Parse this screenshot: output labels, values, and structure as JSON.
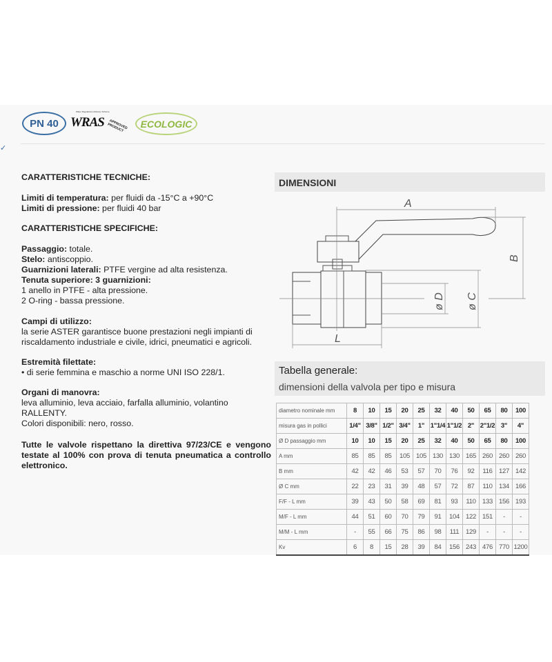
{
  "badges": {
    "pn": "PN 40",
    "wras": "WRAS",
    "wras_sub": "APPROVED PRODUCT",
    "wras_tiny": "Water Regulations Advisory Scheme",
    "ecologic": "ECOLOGIC"
  },
  "left": {
    "h1": "CARATTERISTICHE TECNICHE:",
    "temp_label": "Limiti di temperatura:",
    "temp_value": " per fluidi   da -15°C a +90°C",
    "press_label": "Limiti di pressione:",
    "press_value": " per fluidi 40 bar",
    "h2": "CARATTERISTICHE SPECIFICHE:",
    "pass_label": "Passaggio:",
    "pass_value": " totale.",
    "stelo_label": "Stelo:",
    "stelo_value": " antiscoppio.",
    "guarn_label": "Guarnizioni laterali:",
    "guarn_value": " PTFE vergine ad alta resistenza.",
    "tenuta_label": "Tenuta superiore: 3 guarnizioni:",
    "tenuta_1": "1 anello in PTFE - alta pressione.",
    "tenuta_2": "2 O-ring - bassa pressione.",
    "campi_label": "Campi di utilizzo:",
    "campi_1": "la serie ASTER garantisce buone prestazioni negli impianti di",
    "campi_2": "riscaldamento industriale e civile, idrici, pneumatici e agricoli.",
    "estr_label": "Estremità filettate:",
    "estr_1": "•  di serie  femmina e maschio a norme UNI ISO 228/1.",
    "organi_label": "Organi di manovra:",
    "organi_1": "leva alluminio, leva acciaio, farfalla alluminio, volantino",
    "organi_2": "RALLENTY.",
    "organi_3": "Colori disponibili: nero, rosso.",
    "note": "Tutte le valvole rispettano la direttiva 97/23/CE e vengono testate al 100% con prova di tenuta pneumatica a controllo elettronico."
  },
  "right": {
    "dim_title": "DIMENSIONI",
    "diagram": {
      "A": "A",
      "B": "B",
      "C": "ø C",
      "D": "ø D",
      "L": "L"
    },
    "table_title": "Tabella generale:",
    "table_subtitle": "dimensioni della valvola per tipo e misura"
  },
  "table": {
    "rows": [
      {
        "label": "diametro nominale mm",
        "bold": true,
        "values": [
          "8",
          "10",
          "15",
          "20",
          "25",
          "32",
          "40",
          "50",
          "65",
          "80",
          "100"
        ]
      },
      {
        "label": "misura gas in pollici",
        "bold": true,
        "values": [
          "1/4\"",
          "3/8\"",
          "1/2\"",
          "3/4\"",
          "1\"",
          "1\"1/4",
          "1\"1/2",
          "2\"",
          "2\"1/2",
          "3\"",
          "4\""
        ]
      },
      {
        "label": "Ø D passaggio mm",
        "bold": true,
        "values": [
          "10",
          "10",
          "15",
          "20",
          "25",
          "32",
          "40",
          "50",
          "65",
          "80",
          "100"
        ]
      },
      {
        "label": "A mm",
        "bold": false,
        "values": [
          "85",
          "85",
          "85",
          "105",
          "105",
          "130",
          "130",
          "165",
          "260",
          "260",
          "260"
        ]
      },
      {
        "label": "B mm",
        "bold": false,
        "values": [
          "42",
          "42",
          "46",
          "53",
          "57",
          "70",
          "76",
          "92",
          "116",
          "127",
          "142"
        ]
      },
      {
        "label": "Ø C mm",
        "bold": false,
        "values": [
          "22",
          "23",
          "31",
          "39",
          "48",
          "57",
          "72",
          "87",
          "110",
          "134",
          "166"
        ]
      },
      {
        "label": "F/F - L mm",
        "bold": false,
        "values": [
          "39",
          "43",
          "50",
          "58",
          "69",
          "81",
          "93",
          "110",
          "133",
          "156",
          "193"
        ]
      },
      {
        "label": "M/F - L mm",
        "bold": false,
        "values": [
          "44",
          "51",
          "60",
          "70",
          "79",
          "91",
          "104",
          "122",
          "151",
          "-",
          "-"
        ]
      },
      {
        "label": "M/M - L mm",
        "bold": false,
        "values": [
          "-",
          "55",
          "66",
          "75",
          "86",
          "98",
          "111",
          "129",
          "-",
          "-",
          "-"
        ]
      },
      {
        "label": "Kv",
        "bold": false,
        "values": [
          "6",
          "8",
          "15",
          "28",
          "39",
          "84",
          "156",
          "243",
          "476",
          "770",
          "1200"
        ]
      }
    ]
  },
  "colors": {
    "pn_blue": "#3a6ea5",
    "eco_green": "#8fb840",
    "header_gray": "#e9e9e9"
  }
}
